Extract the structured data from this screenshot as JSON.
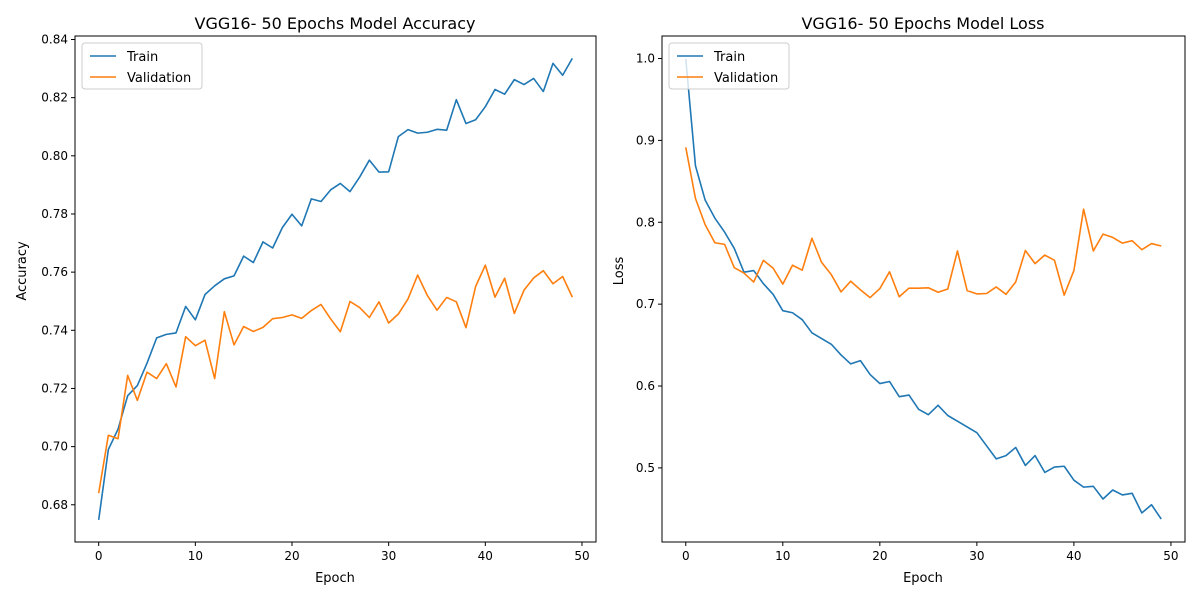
{
  "colors": {
    "train": "#1f77b4",
    "validation": "#ff7f0e"
  },
  "chart_data": [
    {
      "type": "line",
      "title": "VGG16- 50 Epochs Model Accuracy",
      "xlabel": "Epoch",
      "ylabel": "Accuracy",
      "xlim": [
        -2.45,
        51.45
      ],
      "ylim": [
        0.6672,
        0.8412
      ],
      "xticks": [
        0,
        10,
        20,
        30,
        40,
        50
      ],
      "yticks": [
        0.68,
        0.7,
        0.72,
        0.74,
        0.76,
        0.78,
        0.8,
        0.82,
        0.84
      ],
      "ytick_labels": [
        "0.68",
        "0.70",
        "0.72",
        "0.74",
        "0.76",
        "0.78",
        "0.80",
        "0.82",
        "0.84"
      ],
      "legend_position": "top-left",
      "grid": false,
      "x": [
        0,
        1,
        2,
        3,
        4,
        5,
        6,
        7,
        8,
        9,
        10,
        11,
        12,
        13,
        14,
        15,
        16,
        17,
        18,
        19,
        20,
        21,
        22,
        23,
        24,
        25,
        26,
        27,
        28,
        29,
        30,
        31,
        32,
        33,
        34,
        35,
        36,
        37,
        38,
        39,
        40,
        41,
        42,
        43,
        44,
        45,
        46,
        47,
        48,
        49
      ],
      "series": [
        {
          "name": "Train",
          "values": [
            0.6748,
            0.699,
            0.706,
            0.7175,
            0.721,
            0.7287,
            0.7374,
            0.7386,
            0.7391,
            0.7482,
            0.7436,
            0.7523,
            0.7553,
            0.7577,
            0.7587,
            0.7655,
            0.7633,
            0.7704,
            0.7683,
            0.7753,
            0.7799,
            0.7759,
            0.7852,
            0.7843,
            0.7883,
            0.7905,
            0.7877,
            0.7927,
            0.7985,
            0.7944,
            0.7945,
            0.8066,
            0.809,
            0.8078,
            0.8081,
            0.8091,
            0.8088,
            0.8193,
            0.8111,
            0.8124,
            0.8169,
            0.8228,
            0.8212,
            0.8262,
            0.8245,
            0.8266,
            0.8221,
            0.8318,
            0.8277,
            0.8335
          ]
        },
        {
          "name": "Validation",
          "values": [
            0.684,
            0.7039,
            0.7027,
            0.7245,
            0.7159,
            0.7256,
            0.7234,
            0.7285,
            0.7205,
            0.7378,
            0.7347,
            0.7366,
            0.7234,
            0.7464,
            0.735,
            0.7413,
            0.7396,
            0.741,
            0.744,
            0.7444,
            0.7453,
            0.7441,
            0.7468,
            0.7489,
            0.7439,
            0.7395,
            0.7499,
            0.7478,
            0.7444,
            0.7498,
            0.7425,
            0.7456,
            0.7508,
            0.759,
            0.752,
            0.7469,
            0.7513,
            0.7498,
            0.7409,
            0.7551,
            0.7624,
            0.7514,
            0.7579,
            0.7458,
            0.7538,
            0.758,
            0.7605,
            0.756,
            0.7585,
            0.7514
          ]
        }
      ]
    },
    {
      "type": "line",
      "title": "VGG16- 50 Epochs Model Loss",
      "xlabel": "Epoch",
      "ylabel": "Loss",
      "xlim": [
        -2.45,
        51.45
      ],
      "ylim": [
        0.4095,
        1.0275
      ],
      "xticks": [
        0,
        10,
        20,
        30,
        40,
        50
      ],
      "yticks": [
        0.5,
        0.6,
        0.7,
        0.8,
        0.9,
        1.0
      ],
      "ytick_labels": [
        "0.5",
        "0.6",
        "0.7",
        "0.8",
        "0.9",
        "1.0"
      ],
      "legend_position": "top-left",
      "grid": false,
      "x": [
        0,
        1,
        2,
        3,
        4,
        5,
        6,
        7,
        8,
        9,
        10,
        11,
        12,
        13,
        14,
        15,
        16,
        17,
        18,
        19,
        20,
        21,
        22,
        23,
        24,
        25,
        26,
        27,
        28,
        29,
        30,
        31,
        32,
        33,
        34,
        35,
        36,
        37,
        38,
        39,
        40,
        41,
        42,
        43,
        44,
        45,
        46,
        47,
        48,
        49
      ],
      "series": [
        {
          "name": "Train",
          "values": [
            0.9995,
            0.869,
            0.827,
            0.805,
            0.788,
            0.768,
            0.739,
            0.741,
            0.725,
            0.712,
            0.692,
            0.6895,
            0.681,
            0.665,
            0.658,
            0.651,
            0.638,
            0.627,
            0.631,
            0.614,
            0.603,
            0.6055,
            0.587,
            0.589,
            0.5715,
            0.565,
            0.5765,
            0.564,
            0.557,
            0.55,
            0.543,
            0.527,
            0.511,
            0.515,
            0.525,
            0.503,
            0.515,
            0.4945,
            0.501,
            0.502,
            0.485,
            0.4765,
            0.4775,
            0.462,
            0.473,
            0.467,
            0.469,
            0.445,
            0.455,
            0.4375
          ]
        },
        {
          "name": "Validation",
          "values": [
            0.8915,
            0.829,
            0.797,
            0.775,
            0.773,
            0.7445,
            0.738,
            0.727,
            0.7535,
            0.744,
            0.7245,
            0.7475,
            0.7415,
            0.7805,
            0.751,
            0.736,
            0.715,
            0.728,
            0.7175,
            0.708,
            0.719,
            0.7395,
            0.709,
            0.7195,
            0.7195,
            0.72,
            0.7145,
            0.7185,
            0.765,
            0.7165,
            0.7125,
            0.713,
            0.721,
            0.712,
            0.727,
            0.7655,
            0.7495,
            0.76,
            0.7535,
            0.711,
            0.741,
            0.816,
            0.765,
            0.7855,
            0.7815,
            0.7745,
            0.7775,
            0.7665,
            0.774,
            0.771
          ]
        }
      ]
    }
  ]
}
